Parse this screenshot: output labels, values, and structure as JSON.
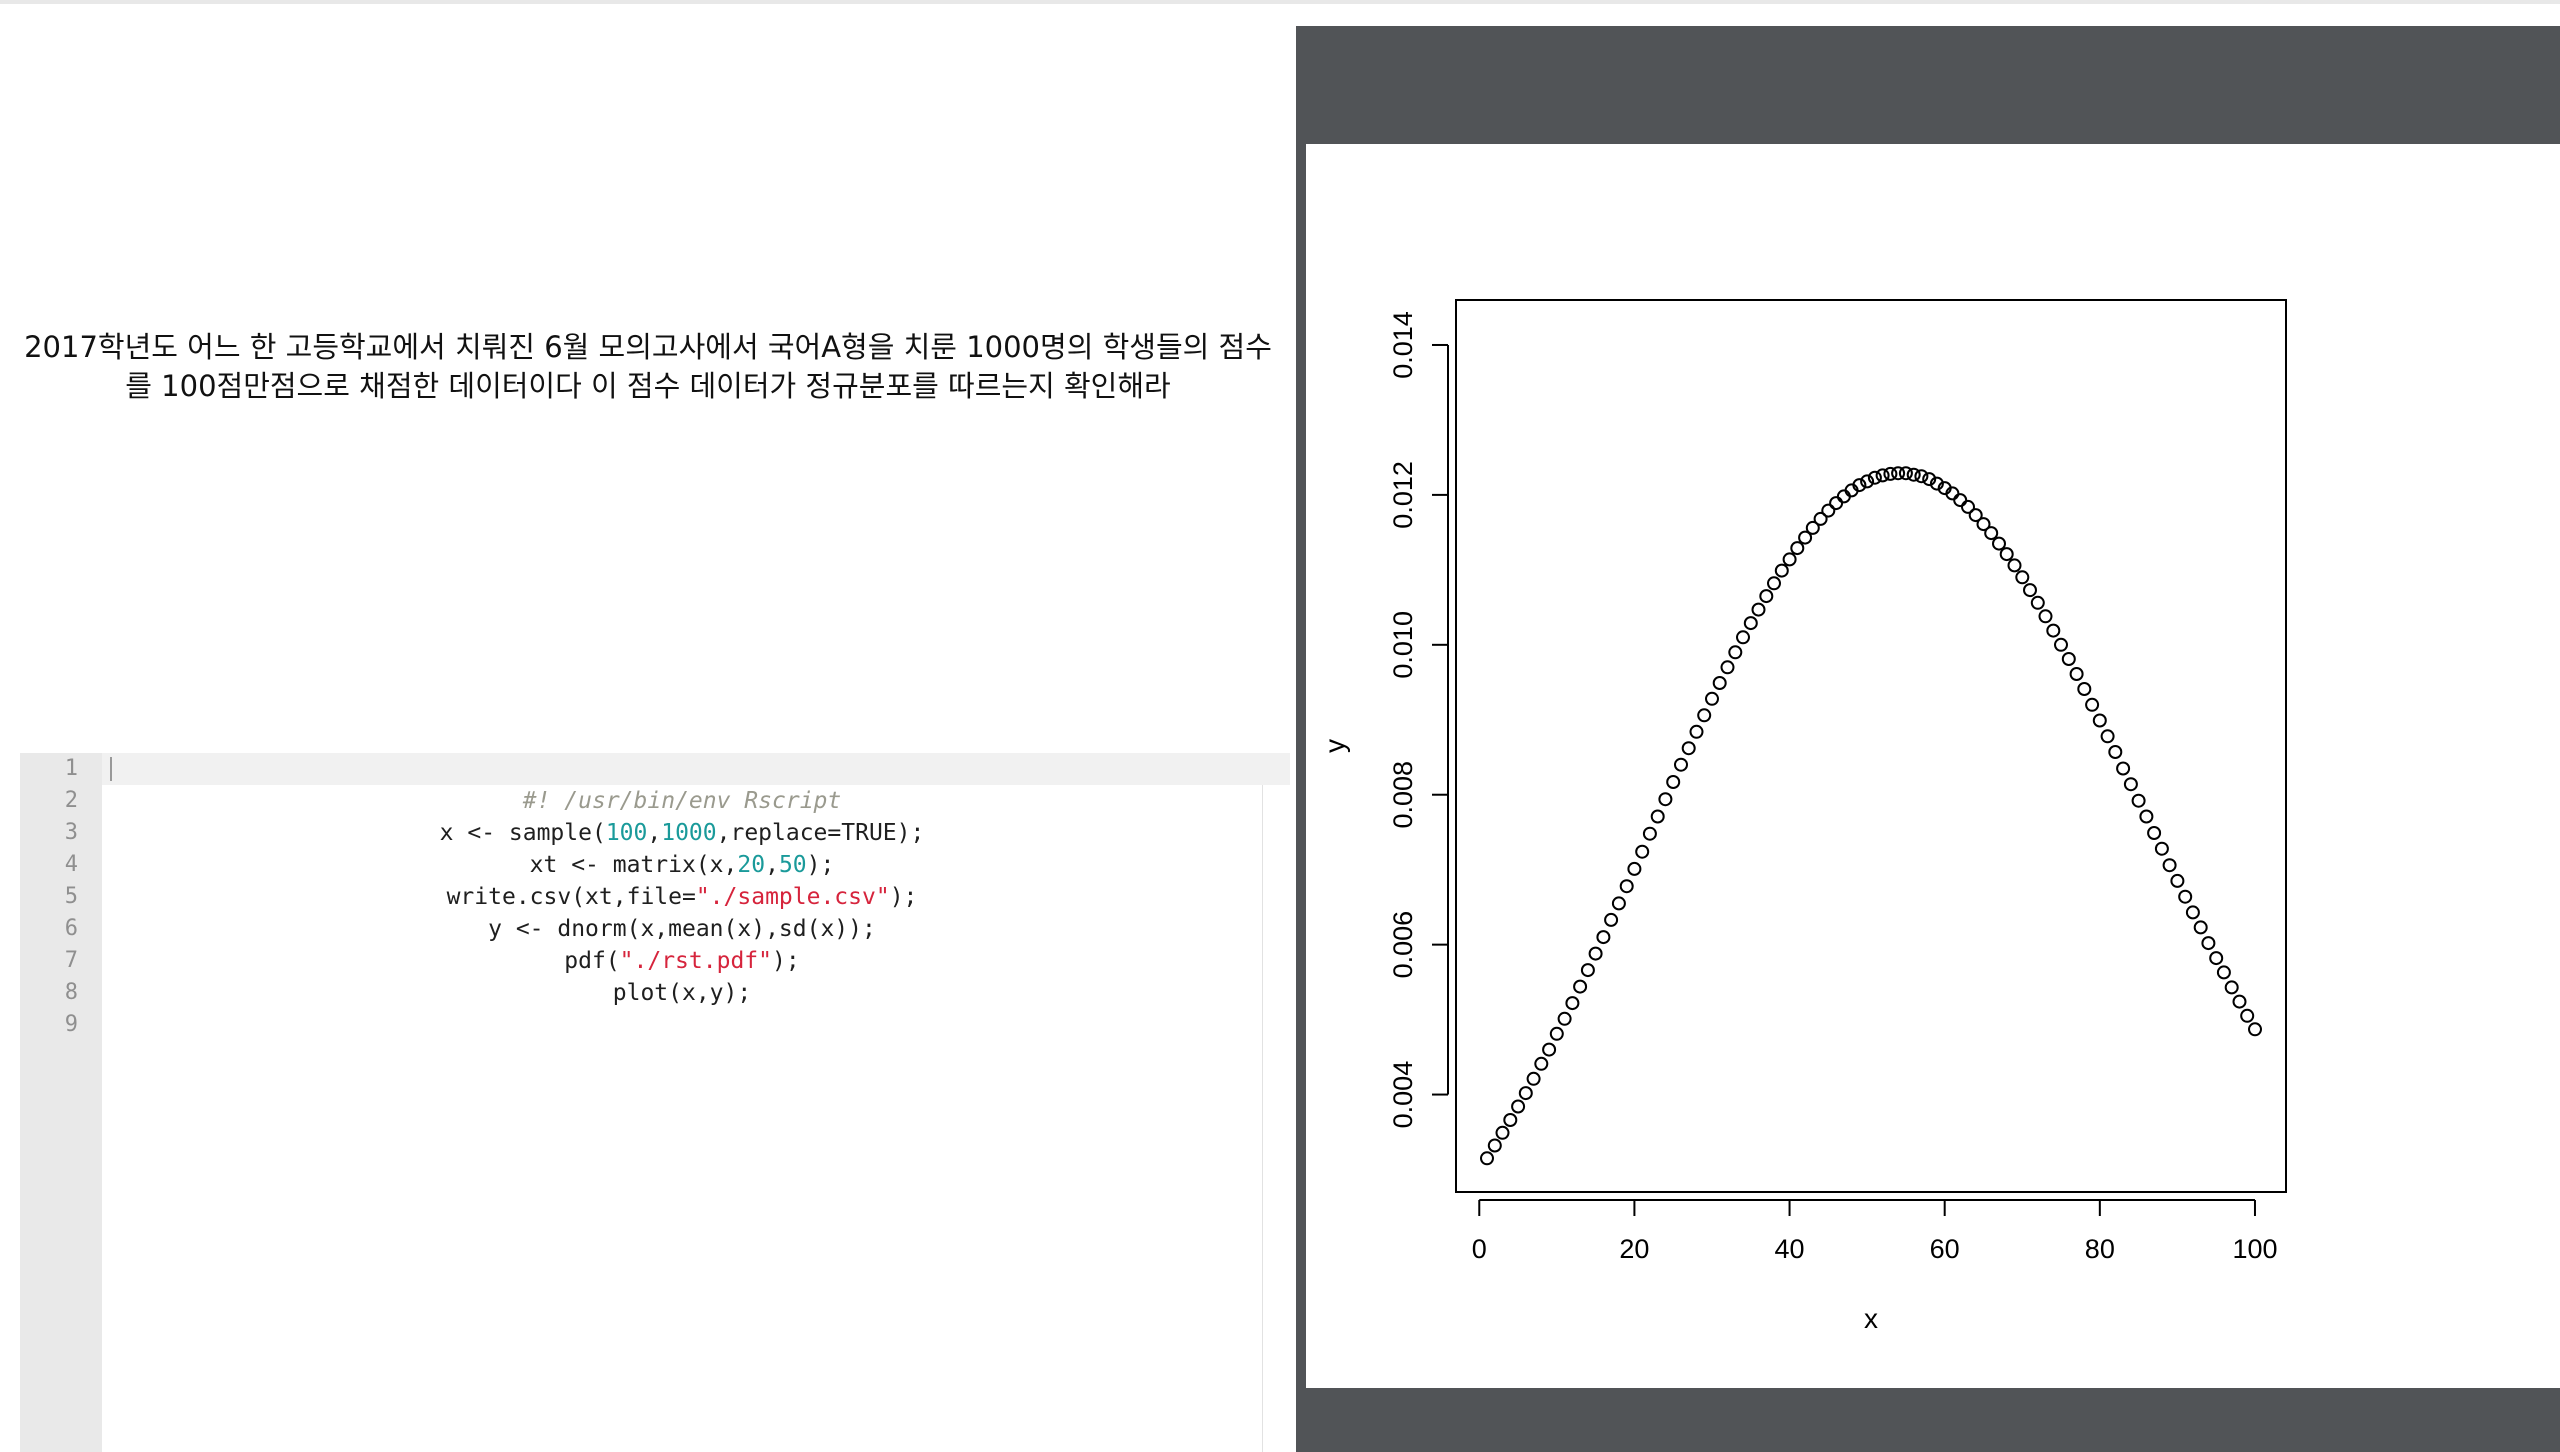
{
  "question": {
    "line1": "2017학년도 어느 한 고등학교에서 치뤄진 6월 모의고사에서 국어A형을 치룬 1000명의 학생들의 점수",
    "line2": "를 100점만점으로 채점한 데이터이다 이 점수 데이터가 정규분포를 따르는지 확인해라"
  },
  "editor": {
    "lines": [
      {
        "num": "1"
      },
      {
        "num": "2",
        "tokens": [
          {
            "t": "#! /usr/bin/env Rscript",
            "c": "cm"
          }
        ]
      },
      {
        "num": "3",
        "tokens": [
          {
            "t": "x <- sample("
          },
          {
            "t": "100",
            "c": "num"
          },
          {
            "t": ","
          },
          {
            "t": "1000",
            "c": "num"
          },
          {
            "t": ",replace=TRUE);"
          }
        ]
      },
      {
        "num": "4",
        "tokens": [
          {
            "t": "xt <- matrix(x,"
          },
          {
            "t": "20",
            "c": "num"
          },
          {
            "t": ","
          },
          {
            "t": "50",
            "c": "num"
          },
          {
            "t": ");"
          }
        ]
      },
      {
        "num": "5",
        "tokens": [
          {
            "t": "write.csv(xt,file="
          },
          {
            "t": "\"./sample.csv\"",
            "c": "str"
          },
          {
            "t": ");"
          }
        ]
      },
      {
        "num": "6",
        "tokens": [
          {
            "t": "y <- dnorm(x,mean(x),sd(x));"
          }
        ]
      },
      {
        "num": "7",
        "tokens": [
          {
            "t": "pdf("
          },
          {
            "t": "\"./rst.pdf\"",
            "c": "str"
          },
          {
            "t": ");"
          }
        ]
      },
      {
        "num": "8",
        "tokens": [
          {
            "t": "plot(x,y);"
          }
        ]
      },
      {
        "num": "9"
      }
    ]
  },
  "chart_data": {
    "type": "scatter",
    "x": [
      1,
      2,
      3,
      4,
      5,
      6,
      7,
      8,
      9,
      10,
      11,
      12,
      13,
      14,
      15,
      16,
      17,
      18,
      19,
      20,
      21,
      22,
      23,
      24,
      25,
      26,
      27,
      28,
      29,
      30,
      31,
      32,
      33,
      34,
      35,
      36,
      37,
      38,
      39,
      40,
      41,
      42,
      43,
      44,
      45,
      46,
      47,
      48,
      49,
      50,
      51,
      52,
      53,
      54,
      55,
      56,
      57,
      58,
      59,
      60,
      61,
      62,
      63,
      64,
      65,
      66,
      67,
      68,
      69,
      70,
      71,
      72,
      73,
      74,
      75,
      76,
      77,
      78,
      79,
      80,
      81,
      82,
      83,
      84,
      85,
      86,
      87,
      88,
      89,
      90,
      91,
      92,
      93,
      94,
      95,
      96,
      97,
      98,
      99,
      100
    ],
    "y": [
      0.00315,
      0.00332,
      0.00349,
      0.00366,
      0.00384,
      0.00402,
      0.00421,
      0.00441,
      0.0046,
      0.00481,
      0.00501,
      0.00522,
      0.00544,
      0.00566,
      0.00588,
      0.0061,
      0.00633,
      0.00655,
      0.00678,
      0.00701,
      0.00724,
      0.00748,
      0.00771,
      0.00794,
      0.00817,
      0.0084,
      0.00862,
      0.00884,
      0.00906,
      0.00928,
      0.00949,
      0.0097,
      0.0099,
      0.0101,
      0.01029,
      0.01047,
      0.01065,
      0.01082,
      0.01099,
      0.01114,
      0.01129,
      0.01143,
      0.01156,
      0.01168,
      0.01179,
      0.01189,
      0.01198,
      0.01206,
      0.01213,
      0.01218,
      0.01223,
      0.01226,
      0.01228,
      0.01229,
      0.01229,
      0.01227,
      0.01225,
      0.01221,
      0.01215,
      0.01209,
      0.01202,
      0.01193,
      0.01184,
      0.01173,
      0.01161,
      0.01149,
      0.01135,
      0.01121,
      0.01106,
      0.0109,
      0.01073,
      0.01056,
      0.01038,
      0.01019,
      0.01,
      0.00981,
      0.00961,
      0.00941,
      0.0092,
      0.00899,
      0.00878,
      0.00857,
      0.00835,
      0.00814,
      0.00792,
      0.00771,
      0.00749,
      0.00728,
      0.00706,
      0.00685,
      0.00664,
      0.00643,
      0.00623,
      0.00602,
      0.00582,
      0.00563,
      0.00543,
      0.00524,
      0.00505,
      0.00487
    ],
    "xlabel": "x",
    "ylabel": "y",
    "xticks": [
      0,
      20,
      40,
      60,
      80,
      100
    ],
    "yticks": [
      0.004,
      0.006,
      0.008,
      0.01,
      0.012,
      0.014
    ],
    "xtick_labels": [
      "0",
      "20",
      "40",
      "60",
      "80",
      "100"
    ],
    "ytick_labels": [
      "0.004",
      "0.006",
      "0.008",
      "0.010",
      "0.012",
      "0.014"
    ],
    "xlim": [
      -3,
      104
    ],
    "ylim": [
      0.0027,
      0.0146
    ],
    "grid": false,
    "marker": "open-circle"
  }
}
